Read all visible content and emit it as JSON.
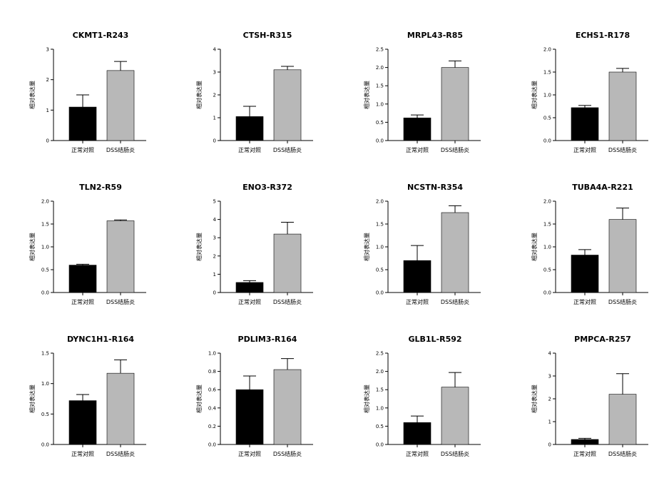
{
  "chart_data": [
    {
      "type": "bar",
      "title": "CKMT1-R243",
      "ylabel": "相对表达量",
      "categories": [
        "正常对照",
        "DSS结肠炎"
      ],
      "values": [
        1.1,
        2.3
      ],
      "errors": [
        0.4,
        0.3
      ],
      "ylim": [
        0,
        3
      ],
      "yticks": [
        "0",
        "1",
        "2",
        "3"
      ],
      "colors": [
        "#000000",
        "#b8b8b8"
      ]
    },
    {
      "type": "bar",
      "title": "CTSH-R315",
      "ylabel": "相对表达量",
      "categories": [
        "正常对照",
        "DSS结肠炎"
      ],
      "values": [
        1.05,
        3.1
      ],
      "errors": [
        0.45,
        0.15
      ],
      "ylim": [
        0,
        4
      ],
      "yticks": [
        "0",
        "1",
        "2",
        "3",
        "4"
      ],
      "colors": [
        "#000000",
        "#b8b8b8"
      ]
    },
    {
      "type": "bar",
      "title": "MRPL43-R85",
      "ylabel": "相对表达量",
      "categories": [
        "正常对照",
        "DSS结肠炎"
      ],
      "values": [
        0.62,
        2.0
      ],
      "errors": [
        0.08,
        0.18
      ],
      "ylim": [
        0,
        2.5
      ],
      "yticks": [
        "0.0",
        "0.5",
        "1.0",
        "1.5",
        "2.0",
        "2.5"
      ],
      "colors": [
        "#000000",
        "#b8b8b8"
      ]
    },
    {
      "type": "bar",
      "title": "ECHS1-R178",
      "ylabel": "相对表达量",
      "categories": [
        "正常对照",
        "DSS结肠炎"
      ],
      "values": [
        0.72,
        1.5
      ],
      "errors": [
        0.05,
        0.08
      ],
      "ylim": [
        0,
        2.0
      ],
      "yticks": [
        "0.0",
        "0.5",
        "1.0",
        "1.5",
        "2.0"
      ],
      "colors": [
        "#000000",
        "#b8b8b8"
      ]
    },
    {
      "type": "bar",
      "title": "TLN2-R59",
      "ylabel": "相对表达量",
      "categories": [
        "正常对照",
        "DSS结肠炎"
      ],
      "values": [
        0.6,
        1.57
      ],
      "errors": [
        0.02,
        0.02
      ],
      "ylim": [
        0,
        2.0
      ],
      "yticks": [
        "0.0",
        "0.5",
        "1.0",
        "1.5",
        "2.0"
      ],
      "colors": [
        "#000000",
        "#b8b8b8"
      ]
    },
    {
      "type": "bar",
      "title": "ENO3-R372",
      "ylabel": "相对表达量",
      "categories": [
        "正常对照",
        "DSS结肠炎"
      ],
      "values": [
        0.55,
        3.2
      ],
      "errors": [
        0.1,
        0.65
      ],
      "ylim": [
        0,
        5
      ],
      "yticks": [
        "0",
        "1",
        "2",
        "3",
        "4",
        "5"
      ],
      "colors": [
        "#000000",
        "#b8b8b8"
      ]
    },
    {
      "type": "bar",
      "title": "NCSTN-R354",
      "ylabel": "相对表达量",
      "categories": [
        "正常对照",
        "DSS结肠炎"
      ],
      "values": [
        0.7,
        1.75
      ],
      "errors": [
        0.33,
        0.15
      ],
      "ylim": [
        0,
        2.0
      ],
      "yticks": [
        "0.0",
        "0.5",
        "1.0",
        "1.5",
        "2.0"
      ],
      "colors": [
        "#000000",
        "#b8b8b8"
      ]
    },
    {
      "type": "bar",
      "title": "TUBA4A-R221",
      "ylabel": "相对表达量",
      "categories": [
        "正常对照",
        "DSS结肠炎"
      ],
      "values": [
        0.82,
        1.6
      ],
      "errors": [
        0.12,
        0.25
      ],
      "ylim": [
        0,
        2.0
      ],
      "yticks": [
        "0.0",
        "0.5",
        "1.0",
        "1.5",
        "2.0"
      ],
      "colors": [
        "#000000",
        "#b8b8b8"
      ]
    },
    {
      "type": "bar",
      "title": "DYNC1H1-R164",
      "ylabel": "相对表达量",
      "categories": [
        "正常对照",
        "DSS结肠炎"
      ],
      "values": [
        0.72,
        1.17
      ],
      "errors": [
        0.1,
        0.22
      ],
      "ylim": [
        0,
        1.5
      ],
      "yticks": [
        "0.0",
        "0.5",
        "1.0",
        "1.5"
      ],
      "colors": [
        "#000000",
        "#b8b8b8"
      ]
    },
    {
      "type": "bar",
      "title": "PDLIM3-R164",
      "ylabel": "相对表达量",
      "categories": [
        "正常对照",
        "DSS结肠炎"
      ],
      "values": [
        0.6,
        0.82
      ],
      "errors": [
        0.15,
        0.12
      ],
      "ylim": [
        0,
        1.0
      ],
      "yticks": [
        "0.0",
        "0.2",
        "0.4",
        "0.6",
        "0.8",
        "1.0"
      ],
      "colors": [
        "#000000",
        "#b8b8b8"
      ]
    },
    {
      "type": "bar",
      "title": "GLB1L-R592",
      "ylabel": "相对表达量",
      "categories": [
        "正常对照",
        "DSS结肠炎"
      ],
      "values": [
        0.6,
        1.57
      ],
      "errors": [
        0.18,
        0.4
      ],
      "ylim": [
        0,
        2.5
      ],
      "yticks": [
        "0.0",
        "0.5",
        "1.0",
        "1.5",
        "2.0",
        "2.5"
      ],
      "colors": [
        "#000000",
        "#b8b8b8"
      ]
    },
    {
      "type": "bar",
      "title": "PMPCA-R257",
      "ylabel": "相对表达量",
      "categories": [
        "正常对照",
        "DSS结肠炎"
      ],
      "values": [
        0.22,
        2.2
      ],
      "errors": [
        0.05,
        0.9
      ],
      "ylim": [
        0,
        4
      ],
      "yticks": [
        "0",
        "1",
        "2",
        "3",
        "4"
      ],
      "colors": [
        "#000000",
        "#b8b8b8"
      ]
    }
  ]
}
